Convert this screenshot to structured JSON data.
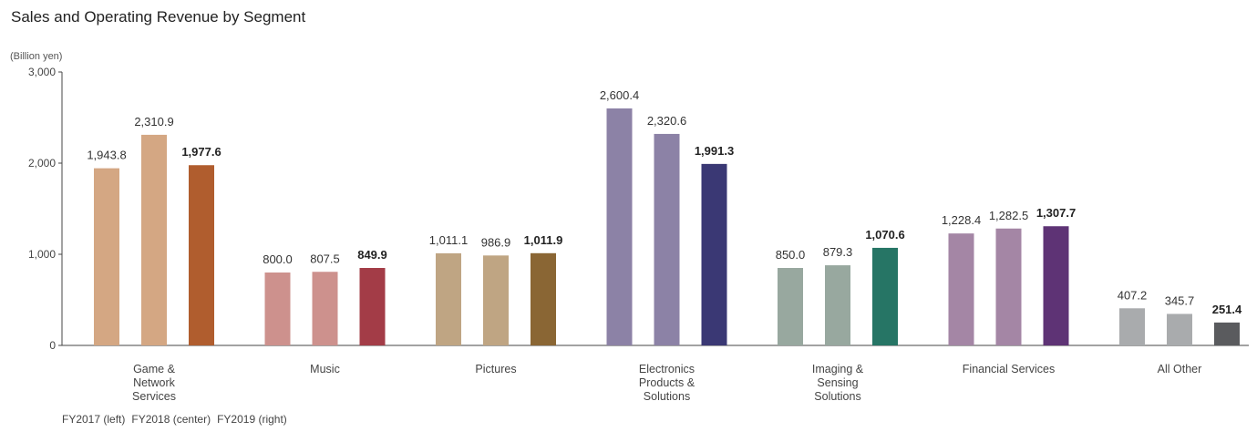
{
  "title": "Sales and Operating Revenue by Segment",
  "unit_label": "(Billion yen)",
  "legend": [
    "FY2017 (left)",
    "FY2018 (center)",
    "FY2019 (right)"
  ],
  "chart_data": {
    "type": "bar",
    "title": "Sales and Operating Revenue by Segment",
    "ylabel": "(Billion yen)",
    "ylim": [
      0,
      3000
    ],
    "yticks": [
      0,
      1000,
      2000,
      3000
    ],
    "ytick_labels": [
      "0",
      "1,000",
      "2,000",
      "3,000"
    ],
    "grid": false,
    "categories": [
      {
        "name": "Game & Network Services",
        "lines": [
          "Game &",
          "Network",
          "Services"
        ],
        "colors": [
          "#d4a783",
          "#d4a783",
          "#b05d2e"
        ]
      },
      {
        "name": "Music",
        "lines": [
          "Music"
        ],
        "colors": [
          "#cd918d",
          "#cd918d",
          "#a33c47"
        ]
      },
      {
        "name": "Pictures",
        "lines": [
          "Pictures"
        ],
        "colors": [
          "#bfa583",
          "#bfa583",
          "#8a6634"
        ]
      },
      {
        "name": "Electronics Products & Solutions",
        "lines": [
          "Electronics",
          "Products &",
          "Solutions"
        ],
        "colors": [
          "#8c82a6",
          "#8c82a6",
          "#3a3874"
        ]
      },
      {
        "name": "Imaging & Sensing Solutions",
        "lines": [
          "Imaging &",
          "Sensing",
          "Solutions"
        ],
        "colors": [
          "#98a89f",
          "#98a89f",
          "#267565"
        ]
      },
      {
        "name": "Financial Services",
        "lines": [
          "Financial Services"
        ],
        "colors": [
          "#a486a5",
          "#a486a5",
          "#5e3375"
        ]
      },
      {
        "name": "All Other",
        "lines": [
          "All Other"
        ],
        "colors": [
          "#a9abad",
          "#a9abad",
          "#5a5b5e"
        ]
      }
    ],
    "series": [
      {
        "name": "FY2017 (left)",
        "values": [
          1943.8,
          800.0,
          1011.1,
          2600.4,
          850.0,
          1228.4,
          407.2
        ],
        "labels": [
          "1,943.8",
          "800.0",
          "1,011.1",
          "2,600.4",
          "850.0",
          "1,228.4",
          "407.2"
        ]
      },
      {
        "name": "FY2018 (center)",
        "values": [
          2310.9,
          807.5,
          986.9,
          2320.6,
          879.3,
          1282.5,
          345.7
        ],
        "labels": [
          "2,310.9",
          "807.5",
          "986.9",
          "2,320.6",
          "879.3",
          "1,282.5",
          "345.7"
        ]
      },
      {
        "name": "FY2019 (right)",
        "values": [
          1977.6,
          849.9,
          1011.9,
          1991.3,
          1070.6,
          1307.7,
          251.4
        ],
        "labels": [
          "1,977.6",
          "849.9",
          "1,011.9",
          "1,991.3",
          "1,070.6",
          "1,307.7",
          "251.4"
        ]
      }
    ]
  }
}
